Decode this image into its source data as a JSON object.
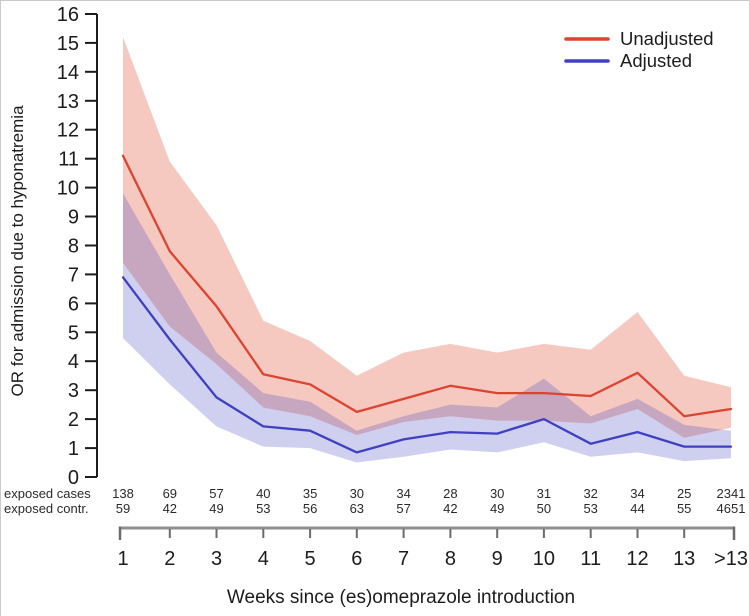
{
  "chart_data": {
    "type": "line",
    "title": "",
    "xlabel": "Weeks since (es)omeprazole introduction",
    "ylabel": "OR for admission due to hyponatremia",
    "ylim": [
      0,
      16
    ],
    "y_ticks": [
      0,
      1,
      2,
      3,
      4,
      5,
      6,
      7,
      8,
      9,
      10,
      11,
      12,
      13,
      14,
      15,
      16
    ],
    "categories": [
      "1",
      "2",
      "3",
      "4",
      "5",
      "6",
      "7",
      "8",
      "9",
      "10",
      "11",
      "12",
      "13",
      ">13"
    ],
    "legend_position": "top-right",
    "grid": false,
    "series": [
      {
        "name": "Unadjusted",
        "color": "#dc4430",
        "band_fill": "rgba(221,72,48,0.30)",
        "values": [
          11.1,
          7.8,
          5.9,
          3.55,
          3.2,
          2.25,
          2.7,
          3.15,
          2.9,
          2.9,
          2.8,
          3.6,
          2.1,
          2.35
        ],
        "ci_upper": [
          15.2,
          10.9,
          8.7,
          5.4,
          4.7,
          3.5,
          4.3,
          4.6,
          4.3,
          4.6,
          4.4,
          5.7,
          3.5,
          3.1
        ],
        "ci_lower": [
          7.4,
          5.2,
          3.9,
          2.4,
          2.1,
          1.45,
          1.9,
          2.1,
          1.95,
          1.95,
          1.85,
          2.35,
          1.35,
          1.7
        ]
      },
      {
        "name": "Adjusted",
        "color": "#4040c0",
        "band_fill": "rgba(64,64,192,0.25)",
        "values": [
          6.9,
          4.75,
          2.75,
          1.75,
          1.6,
          0.85,
          1.3,
          1.55,
          1.5,
          2.0,
          1.15,
          1.55,
          1.05,
          1.05
        ],
        "ci_upper": [
          9.8,
          7.0,
          4.3,
          2.9,
          2.6,
          1.6,
          2.1,
          2.5,
          2.4,
          3.4,
          2.1,
          2.7,
          1.8,
          1.6
        ],
        "ci_lower": [
          4.8,
          3.2,
          1.75,
          1.05,
          1.0,
          0.5,
          0.7,
          0.95,
          0.85,
          1.2,
          0.7,
          0.85,
          0.55,
          0.65
        ]
      }
    ],
    "count_rows": [
      {
        "label": "exposed cases",
        "values": [
          138,
          69,
          57,
          40,
          35,
          30,
          34,
          28,
          30,
          31,
          32,
          34,
          25,
          2341
        ]
      },
      {
        "label": "exposed contr.",
        "values": [
          59,
          42,
          49,
          53,
          56,
          63,
          57,
          42,
          49,
          50,
          53,
          44,
          55,
          4651
        ]
      }
    ]
  }
}
